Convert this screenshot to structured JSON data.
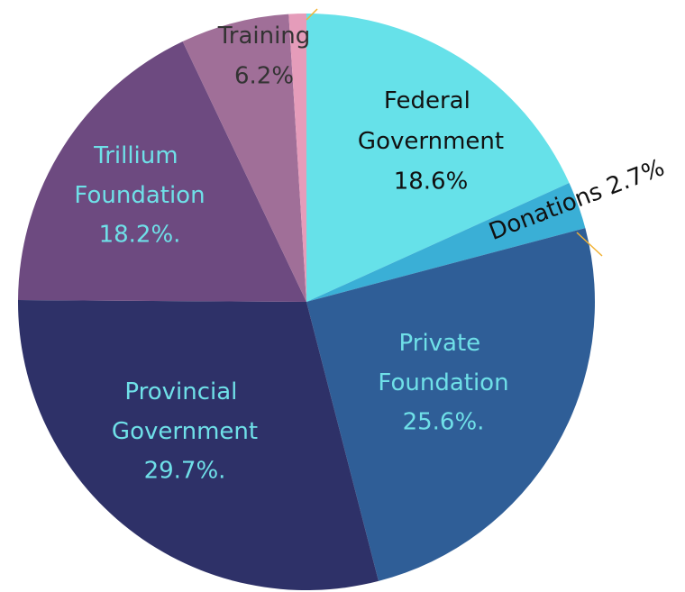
{
  "chart_data": {
    "type": "pie",
    "categories": [
      "Federal Government",
      "Donations",
      "Private Foundation",
      "Provincial Government",
      "Trillium Foundation",
      "Training",
      null
    ],
    "values": [
      18.6,
      2.7,
      25.6,
      29.7,
      18.2,
      6.2,
      1
    ],
    "value_labels": [
      "18.6%",
      "2.7%",
      "25.6%.",
      "29.7%.",
      "18.2%.",
      "6.2%",
      null
    ],
    "colors": [
      "#66e1e9",
      "#3aafd6",
      "#2f5e97",
      "#2e3168",
      "#6d4a80",
      "#a06f98",
      "#e59cba"
    ]
  }
}
